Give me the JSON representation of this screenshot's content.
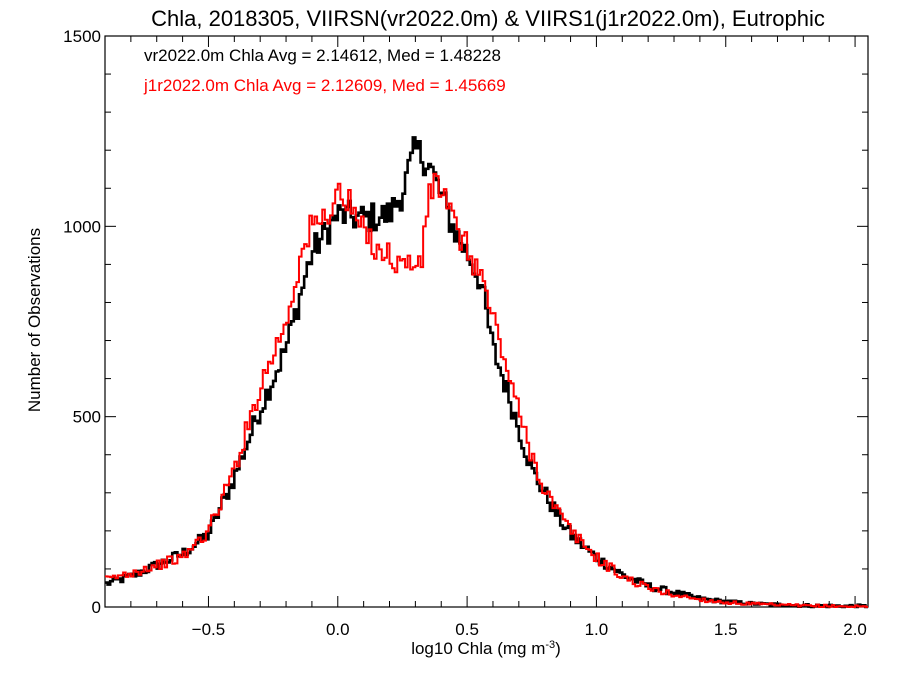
{
  "chart_data": {
    "type": "line",
    "title": "Chla, 2018305, VIIRSN(vr2022.0m) & VIIRS1(j1r2022.0m), Eutrophic",
    "xlabel": "log10 Chla (mg m",
    "xlabel_sup": "-3",
    "xlabel_close": ")",
    "ylabel": "Number of Observations",
    "xlim": [
      -0.9,
      2.05
    ],
    "ylim": [
      0,
      1500
    ],
    "xticks": [
      -0.5,
      0.0,
      0.5,
      1.0,
      1.5,
      2.0
    ],
    "xtick_labels": [
      "−0.5",
      "0.0",
      "0.5",
      "1.0",
      "1.5",
      "2.0"
    ],
    "yticks": [
      0,
      500,
      1000,
      1500
    ],
    "ytick_labels": [
      "0",
      "500",
      "1000",
      "1500"
    ],
    "grid": false,
    "annotations": [
      {
        "text": "vr2022.0m Chla Avg = 2.14612, Med = 1.48228",
        "color": "#000000"
      },
      {
        "text": "j1r2022.0m Chla Avg = 2.12609, Med = 1.45669",
        "color": "#ff0000"
      }
    ],
    "series": [
      {
        "name": "vr2022.0m",
        "color": "#000000",
        "x": [
          -0.9,
          -0.8,
          -0.7,
          -0.6,
          -0.5,
          -0.4,
          -0.3,
          -0.2,
          -0.1,
          0.0,
          0.1,
          0.2,
          0.25,
          0.3,
          0.35,
          0.4,
          0.45,
          0.5,
          0.55,
          0.6,
          0.65,
          0.7,
          0.75,
          0.8,
          0.85,
          0.9,
          1.0,
          1.1,
          1.2,
          1.3,
          1.4,
          1.5,
          1.6,
          1.7,
          1.8,
          1.9,
          2.05
        ],
        "y": [
          60,
          80,
          110,
          140,
          190,
          340,
          520,
          680,
          930,
          1030,
          1020,
          1030,
          1090,
          1200,
          1170,
          1080,
          990,
          930,
          860,
          680,
          580,
          470,
          360,
          300,
          240,
          190,
          130,
          85,
          55,
          38,
          22,
          14,
          9,
          6,
          4,
          3,
          2
        ]
      },
      {
        "name": "j1r2022.0m",
        "color": "#ff0000",
        "x": [
          -0.9,
          -0.8,
          -0.7,
          -0.6,
          -0.5,
          -0.4,
          -0.3,
          -0.2,
          -0.15,
          -0.1,
          -0.05,
          0.0,
          0.05,
          0.1,
          0.15,
          0.2,
          0.25,
          0.3,
          0.33,
          0.35,
          0.38,
          0.4,
          0.45,
          0.5,
          0.55,
          0.6,
          0.65,
          0.7,
          0.75,
          0.8,
          0.85,
          0.9,
          1.0,
          1.1,
          1.2,
          1.3,
          1.4,
          1.5,
          1.6,
          1.7,
          1.8,
          1.9,
          2.05
        ],
        "y": [
          70,
          90,
          110,
          130,
          200,
          360,
          580,
          750,
          900,
          1000,
          1020,
          1090,
          1050,
          980,
          950,
          920,
          900,
          900,
          920,
          1080,
          1120,
          1100,
          1000,
          940,
          880,
          760,
          640,
          510,
          400,
          310,
          250,
          200,
          130,
          80,
          50,
          32,
          20,
          12,
          8,
          5,
          3,
          2,
          1
        ]
      }
    ]
  }
}
